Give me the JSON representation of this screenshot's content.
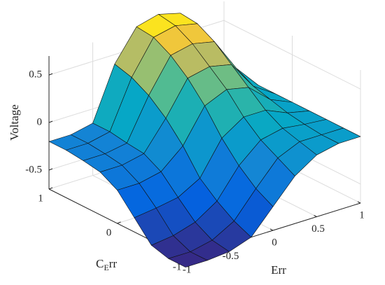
{
  "chart_data": {
    "type": "surface",
    "xlabel": "Err",
    "ylabel": "CErr",
    "zlabel": "Voltage",
    "x": [
      -1,
      -0.75,
      -0.5,
      -0.25,
      0,
      0.25,
      0.5,
      0.75,
      1
    ],
    "y": [
      -1,
      -0.75,
      -0.5,
      -0.25,
      0,
      0.25,
      0.5,
      0.75,
      1
    ],
    "z": [
      [
        -0.8,
        -0.8,
        -0.78,
        -0.7,
        -0.45,
        -0.2,
        -0.05,
        0.0,
        0.0
      ],
      [
        -0.8,
        -0.8,
        -0.75,
        -0.62,
        -0.35,
        -0.1,
        0.0,
        0.0,
        0.0
      ],
      [
        -0.75,
        -0.72,
        -0.65,
        -0.5,
        -0.2,
        0.0,
        0.05,
        0.02,
        0.0
      ],
      [
        -0.55,
        -0.52,
        -0.48,
        -0.35,
        0.0,
        0.15,
        0.15,
        0.05,
        0.0
      ],
      [
        -0.35,
        -0.35,
        -0.3,
        -0.1,
        0.25,
        0.35,
        0.3,
        0.1,
        0.0
      ],
      [
        -0.25,
        -0.25,
        -0.2,
        0.1,
        0.45,
        0.5,
        0.45,
        0.15,
        0.0
      ],
      [
        -0.22,
        -0.22,
        -0.18,
        0.25,
        0.6,
        0.65,
        0.6,
        0.25,
        0.0
      ],
      [
        -0.2,
        -0.2,
        -0.15,
        0.35,
        0.7,
        0.75,
        0.7,
        0.35,
        0.0
      ],
      [
        -0.2,
        -0.2,
        -0.15,
        0.4,
        0.72,
        0.78,
        0.72,
        0.4,
        0.0
      ]
    ],
    "xlim": [
      -1,
      1
    ],
    "ylim": [
      -1,
      1
    ],
    "zlim": [
      -0.7,
      0.7
    ],
    "xticks": [
      -1,
      -0.5,
      0,
      0.5,
      1
    ],
    "yticks": [
      -1,
      0,
      1
    ],
    "zticks": [
      -0.5,
      0,
      0.5
    ],
    "grid": true,
    "colormap": "parula"
  }
}
